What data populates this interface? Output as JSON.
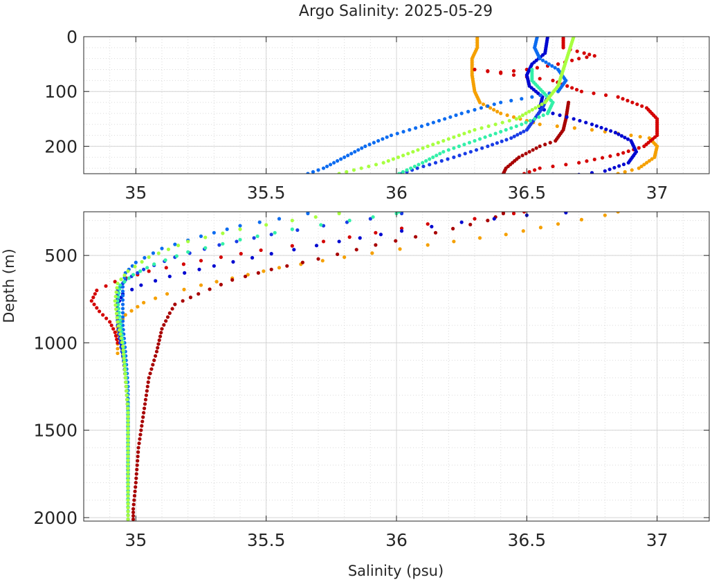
{
  "chart_data": {
    "type": "scatter",
    "title": "Argo Salinity: 2025-05-29",
    "xlabel": "Salinity (psu)",
    "ylabel": "Depth (m)",
    "y_reversed": true,
    "grid": true,
    "minor_grid": true,
    "legend": "none",
    "panels": [
      {
        "name": "upper",
        "xlim": [
          34.8,
          37.2
        ],
        "ylim": [
          0,
          250
        ],
        "x_ticks": [
          35,
          35.5,
          36,
          36.5,
          37
        ],
        "x_tick_labels": [
          "35",
          "35.5",
          "36",
          "36.5",
          "37"
        ],
        "y_ticks": [
          0,
          100,
          200
        ],
        "y_tick_labels": [
          "0",
          "100",
          "200"
        ]
      },
      {
        "name": "lower",
        "xlim": [
          34.8,
          37.2
        ],
        "ylim": [
          250,
          2020
        ],
        "x_ticks": [
          35,
          35.5,
          36,
          36.5,
          37
        ],
        "x_tick_labels": [
          "35",
          "35.5",
          "36",
          "36.5",
          "37"
        ],
        "y_ticks": [
          500,
          1000,
          1500,
          2000
        ],
        "y_tick_labels": [
          "500",
          "1000",
          "1500",
          "2000"
        ]
      }
    ],
    "series": [
      {
        "color": "#f5a000",
        "points": [
          [
            36.31,
            0
          ],
          [
            36.31,
            20
          ],
          [
            36.29,
            40
          ],
          [
            36.29,
            70
          ],
          [
            36.3,
            100
          ],
          [
            36.32,
            120
          ],
          [
            36.4,
            140
          ],
          [
            36.55,
            160
          ],
          [
            36.75,
            170
          ],
          [
            36.9,
            180
          ],
          [
            36.97,
            185
          ],
          [
            37.0,
            200
          ],
          [
            36.99,
            220
          ],
          [
            36.93,
            240
          ],
          [
            36.85,
            250
          ],
          [
            36.8,
            270
          ],
          [
            36.62,
            320
          ],
          [
            36.42,
            380
          ],
          [
            36.12,
            440
          ],
          [
            35.8,
            510
          ],
          [
            35.55,
            570
          ],
          [
            35.37,
            630
          ],
          [
            35.25,
            670
          ],
          [
            35.12,
            720
          ],
          [
            35.03,
            770
          ],
          [
            34.96,
            840
          ],
          [
            34.93,
            910
          ],
          [
            34.93,
            980
          ],
          [
            34.93,
            1060
          ]
        ]
      },
      {
        "color": "#d40000",
        "points": [
          [
            36.64,
            0
          ],
          [
            36.64,
            20
          ],
          [
            36.72,
            30
          ],
          [
            36.76,
            35
          ],
          [
            36.7,
            40
          ],
          [
            36.62,
            50
          ],
          [
            36.5,
            60
          ],
          [
            36.4,
            65
          ],
          [
            36.3,
            60
          ],
          [
            36.6,
            80
          ],
          [
            36.71,
            100
          ],
          [
            36.85,
            110
          ],
          [
            36.96,
            130
          ],
          [
            37.0,
            150
          ],
          [
            37.0,
            160
          ],
          [
            37.0,
            180
          ],
          [
            36.95,
            200
          ],
          [
            36.85,
            215
          ],
          [
            36.7,
            230
          ],
          [
            36.55,
            240
          ],
          [
            36.49,
            250
          ],
          [
            36.45,
            260
          ],
          [
            36.3,
            290
          ],
          [
            36.12,
            320
          ],
          [
            35.92,
            370
          ],
          [
            35.72,
            420
          ],
          [
            35.48,
            470
          ],
          [
            35.25,
            530
          ],
          [
            35.05,
            590
          ],
          [
            34.92,
            650
          ],
          [
            34.85,
            700
          ],
          [
            34.83,
            760
          ],
          [
            34.86,
            820
          ],
          [
            34.9,
            880
          ],
          [
            34.92,
            940
          ],
          [
            34.93,
            1000
          ]
        ]
      },
      {
        "color": "#a80000",
        "points": [
          [
            36.66,
            120
          ],
          [
            36.65,
            150
          ],
          [
            36.64,
            170
          ],
          [
            36.61,
            190
          ],
          [
            36.55,
            200
          ],
          [
            36.47,
            220
          ],
          [
            36.42,
            240
          ],
          [
            36.41,
            250
          ],
          [
            36.41,
            260
          ],
          [
            36.35,
            300
          ],
          [
            36.15,
            370
          ],
          [
            35.92,
            440
          ],
          [
            35.7,
            520
          ],
          [
            35.52,
            580
          ],
          [
            35.37,
            640
          ],
          [
            35.24,
            720
          ],
          [
            35.15,
            780
          ],
          [
            35.13,
            830
          ],
          [
            35.1,
            920
          ],
          [
            35.08,
            1050
          ],
          [
            35.05,
            1200
          ],
          [
            35.03,
            1400
          ],
          [
            35.01,
            1600
          ],
          [
            35.0,
            1800
          ],
          [
            34.99,
            1950
          ],
          [
            34.99,
            2010
          ]
        ]
      },
      {
        "color": "#0008d0",
        "points": [
          [
            36.58,
            0
          ],
          [
            36.57,
            30
          ],
          [
            36.52,
            50
          ],
          [
            36.5,
            70
          ],
          [
            36.51,
            90
          ],
          [
            36.56,
            110
          ],
          [
            36.55,
            130
          ],
          [
            36.6,
            140
          ],
          [
            36.68,
            150
          ],
          [
            36.75,
            160
          ],
          [
            36.84,
            175
          ],
          [
            36.9,
            190
          ],
          [
            36.92,
            210
          ],
          [
            36.89,
            230
          ],
          [
            36.8,
            245
          ],
          [
            36.65,
            255
          ],
          [
            36.5,
            270
          ],
          [
            36.25,
            310
          ],
          [
            36.02,
            360
          ],
          [
            35.78,
            420
          ],
          [
            35.52,
            490
          ],
          [
            35.3,
            560
          ],
          [
            35.13,
            620
          ],
          [
            35.02,
            670
          ],
          [
            34.95,
            720
          ],
          [
            34.93,
            780
          ],
          [
            34.93,
            870
          ],
          [
            34.94,
            960
          ],
          [
            34.95,
            1060
          ],
          [
            34.96,
            1200
          ],
          [
            34.97,
            1400
          ],
          [
            34.97,
            1600
          ],
          [
            34.97,
            1800
          ],
          [
            34.97,
            2010
          ]
        ]
      },
      {
        "color": "#1a3ce6",
        "points": [
          [
            36.58,
            110
          ],
          [
            36.56,
            130
          ],
          [
            36.53,
            150
          ],
          [
            36.5,
            170
          ],
          [
            36.44,
            185
          ],
          [
            36.35,
            200
          ],
          [
            36.22,
            220
          ],
          [
            36.08,
            240
          ],
          [
            36.02,
            250
          ],
          [
            36.02,
            260
          ],
          [
            35.9,
            290
          ],
          [
            35.72,
            330
          ],
          [
            35.52,
            380
          ],
          [
            35.32,
            440
          ],
          [
            35.15,
            510
          ],
          [
            35.03,
            580
          ],
          [
            34.96,
            640
          ],
          [
            34.93,
            700
          ],
          [
            34.93,
            800
          ],
          [
            34.93,
            900
          ],
          [
            34.94,
            1000
          ],
          [
            34.96,
            1150
          ],
          [
            34.97,
            1350
          ],
          [
            34.97,
            1600
          ],
          [
            34.97,
            1850
          ],
          [
            34.97,
            2010
          ]
        ]
      },
      {
        "color": "#0d6cf0",
        "points": [
          [
            36.54,
            0
          ],
          [
            36.53,
            20
          ],
          [
            36.55,
            40
          ],
          [
            36.62,
            60
          ],
          [
            36.65,
            80
          ],
          [
            36.62,
            100
          ],
          [
            36.52,
            110
          ],
          [
            36.4,
            120
          ],
          [
            36.25,
            140
          ],
          [
            36.12,
            160
          ],
          [
            35.98,
            180
          ],
          [
            35.88,
            200
          ],
          [
            35.8,
            220
          ],
          [
            35.72,
            240
          ],
          [
            35.66,
            250
          ],
          [
            35.66,
            260
          ],
          [
            35.55,
            290
          ],
          [
            35.4,
            330
          ],
          [
            35.25,
            390
          ],
          [
            35.1,
            460
          ],
          [
            35.0,
            540
          ],
          [
            34.96,
            600
          ],
          [
            34.95,
            680
          ],
          [
            34.95,
            780
          ],
          [
            34.95,
            900
          ],
          [
            34.96,
            1050
          ],
          [
            34.97,
            1250
          ],
          [
            34.97,
            1500
          ],
          [
            34.97,
            1800
          ],
          [
            34.97,
            2010
          ]
        ]
      },
      {
        "color": "#33f0a8",
        "points": [
          [
            36.52,
            60
          ],
          [
            36.52,
            80
          ],
          [
            36.56,
            100
          ],
          [
            36.6,
            120
          ],
          [
            36.58,
            140
          ],
          [
            36.48,
            160
          ],
          [
            36.3,
            190
          ],
          [
            36.18,
            210
          ],
          [
            36.1,
            230
          ],
          [
            36.01,
            250
          ],
          [
            36.0,
            260
          ],
          [
            35.82,
            300
          ],
          [
            35.6,
            350
          ],
          [
            35.4,
            410
          ],
          [
            35.2,
            480
          ],
          [
            35.07,
            550
          ],
          [
            34.99,
            610
          ],
          [
            34.94,
            670
          ],
          [
            34.93,
            760
          ],
          [
            34.94,
            870
          ],
          [
            34.95,
            1000
          ],
          [
            34.96,
            1150
          ],
          [
            34.97,
            1350
          ],
          [
            34.97,
            1600
          ],
          [
            34.97,
            1850
          ],
          [
            34.97,
            2010
          ]
        ]
      },
      {
        "color": "#a8ff40",
        "points": [
          [
            36.68,
            0
          ],
          [
            36.66,
            30
          ],
          [
            36.64,
            60
          ],
          [
            36.62,
            90
          ],
          [
            36.57,
            120
          ],
          [
            36.46,
            150
          ],
          [
            36.3,
            170
          ],
          [
            36.12,
            200
          ],
          [
            35.95,
            230
          ],
          [
            35.78,
            250
          ],
          [
            35.78,
            260
          ],
          [
            35.6,
            300
          ],
          [
            35.4,
            350
          ],
          [
            35.2,
            420
          ],
          [
            35.05,
            510
          ],
          [
            34.97,
            590
          ],
          [
            34.93,
            660
          ],
          [
            34.92,
            760
          ],
          [
            34.93,
            880
          ],
          [
            34.95,
            1020
          ],
          [
            34.96,
            1200
          ],
          [
            34.97,
            1400
          ],
          [
            34.97,
            1650
          ],
          [
            34.97,
            1900
          ],
          [
            34.97,
            2010
          ]
        ]
      }
    ]
  }
}
